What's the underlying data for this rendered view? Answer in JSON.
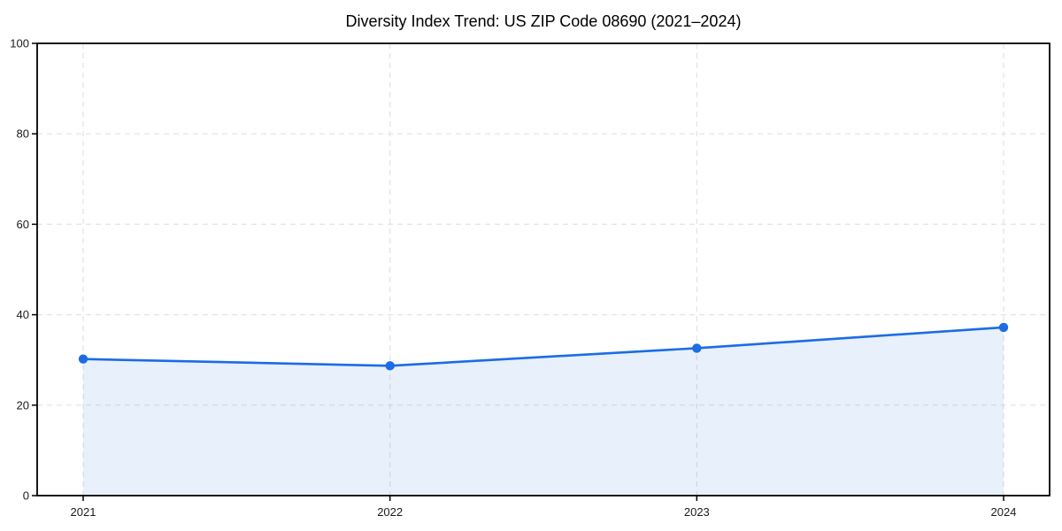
{
  "chart_data": {
    "type": "area",
    "title": "Diversity Index Trend: US ZIP Code 08690 (2021–2024)",
    "x": [
      2021,
      2022,
      2023,
      2024
    ],
    "series": [
      {
        "name": "Diversity Index",
        "values": [
          30.2,
          28.7,
          32.6,
          37.2
        ]
      }
    ],
    "xlabel": "",
    "ylabel": "",
    "ylim": [
      0,
      100
    ],
    "yticks": [
      0,
      20,
      40,
      60,
      80,
      100
    ],
    "ytick_labels": [
      "0",
      "20",
      "40",
      "60",
      "80",
      "100"
    ],
    "xtick_labels": [
      "2021",
      "2022",
      "2023",
      "2024"
    ],
    "x_margin": 0.15,
    "grid": "dashed-both-axes",
    "legend": "none",
    "colors": {
      "line": "#1b6ce5",
      "marker": "#1b6ce5",
      "area_fill": "rgba(27,108,229,0.10)",
      "gridline": "#e3e3e3",
      "spine": "#000000",
      "tick_label": "#1a1a1a",
      "title": "#000000",
      "background": "#ffffff"
    }
  }
}
